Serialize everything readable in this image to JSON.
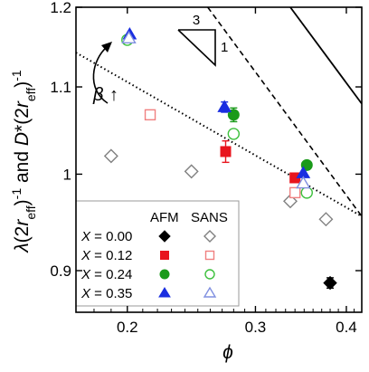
{
  "chart_data": {
    "type": "scatter",
    "x_scale": "log",
    "y_scale": "log",
    "xlim": [
      0.17,
      0.42
    ],
    "ylim": [
      0.86,
      1.2
    ],
    "xlabel": "ϕ",
    "ylabel": "λ(2r_eff)⁻¹ and D*(2r_eff)⁻¹",
    "ylabel_parts": {
      "lambda": "λ",
      "two": "(2",
      "r": "r",
      "eff": "eff",
      "close": ")",
      "minus_one": "-1",
      "and": " and ",
      "dstar": "D",
      "star": "*"
    },
    "x_ticks": [
      {
        "value": 0.2,
        "label": "0.2"
      },
      {
        "value": 0.3,
        "label": "0.3"
      },
      {
        "value": 0.4,
        "label": "0.4"
      }
    ],
    "y_ticks": [
      {
        "value": 0.9,
        "label": "0.9"
      },
      {
        "value": 1.0,
        "label": "1"
      },
      {
        "value": 1.1,
        "label": "1.1"
      },
      {
        "value": 1.2,
        "label": "1.2"
      }
    ],
    "legend": {
      "placement": "bottom-left",
      "headers": {
        "afm": "AFM",
        "sans": "SANS"
      },
      "rows": [
        {
          "var": "X",
          "eq": " = 0.00"
        },
        {
          "var": "X",
          "eq": " = 0.12"
        },
        {
          "var": "X",
          "eq": " = 0.24"
        },
        {
          "var": "X",
          "eq": " = 0.35"
        }
      ]
    },
    "series": [
      {
        "label": "X = 0.00",
        "method": "AFM",
        "color": "#000000",
        "marker": "diamond",
        "filled": true,
        "points": [
          {
            "x": 0.38,
            "y": 0.888,
            "err": 0.005
          }
        ]
      },
      {
        "label": "X = 0.00",
        "method": "SANS",
        "color": "#808080",
        "marker": "diamond",
        "filled": false,
        "points": [
          {
            "x": 0.19,
            "y": 1.02
          },
          {
            "x": 0.245,
            "y": 1.003
          },
          {
            "x": 0.335,
            "y": 0.971
          },
          {
            "x": 0.375,
            "y": 0.952
          }
        ]
      },
      {
        "label": "X = 0.12",
        "method": "AFM",
        "color": "#e8141d",
        "marker": "square",
        "filled": true,
        "points": [
          {
            "x": 0.273,
            "y": 1.025,
            "err": 0.012
          },
          {
            "x": 0.34,
            "y": 0.996
          }
        ]
      },
      {
        "label": "X = 0.12",
        "method": "SANS",
        "color": "#f08080",
        "marker": "square",
        "filled": false,
        "points": [
          {
            "x": 0.215,
            "y": 1.067
          },
          {
            "x": 0.34,
            "y": 0.98
          }
        ]
      },
      {
        "label": "X = 0.24",
        "method": "AFM",
        "color": "#1a9a1a",
        "marker": "circle",
        "filled": true,
        "points": [
          {
            "x": 0.28,
            "y": 1.067,
            "err": 0.008
          },
          {
            "x": 0.353,
            "y": 1.01
          }
        ]
      },
      {
        "label": "X = 0.24",
        "method": "SANS",
        "color": "#3cc03c",
        "marker": "circle",
        "filled": false,
        "points": [
          {
            "x": 0.2,
            "y": 1.158
          },
          {
            "x": 0.28,
            "y": 1.045
          },
          {
            "x": 0.353,
            "y": 0.98
          }
        ]
      },
      {
        "label": "X = 0.35",
        "method": "AFM",
        "color": "#1a2ee0",
        "marker": "triangle",
        "filled": true,
        "points": [
          {
            "x": 0.2015,
            "y": 1.165
          },
          {
            "x": 0.272,
            "y": 1.076,
            "err": 0.006
          },
          {
            "x": 0.349,
            "y": 1.001
          }
        ]
      },
      {
        "label": "X = 0.35",
        "method": "SANS",
        "color": "#8090e0",
        "marker": "triangle",
        "filled": false,
        "points": [
          {
            "x": 0.201,
            "y": 1.16
          },
          {
            "x": 0.349,
            "y": 0.99
          }
        ]
      }
    ],
    "lines": [
      {
        "style": "solid",
        "points": [
          [
            0.335,
            1.2
          ],
          [
            0.42,
            1.08
          ]
        ]
      },
      {
        "style": "dashed",
        "points": [
          [
            0.258,
            1.2
          ],
          [
            0.42,
            0.955
          ]
        ]
      },
      {
        "style": "dotted",
        "points": [
          [
            0.17,
            1.142
          ],
          [
            0.42,
            0.955
          ]
        ]
      }
    ],
    "slope_triangle": {
      "horizontal_label": "3",
      "vertical_label": "1"
    },
    "annotation": {
      "text": "β",
      "arrow": "↑"
    }
  }
}
